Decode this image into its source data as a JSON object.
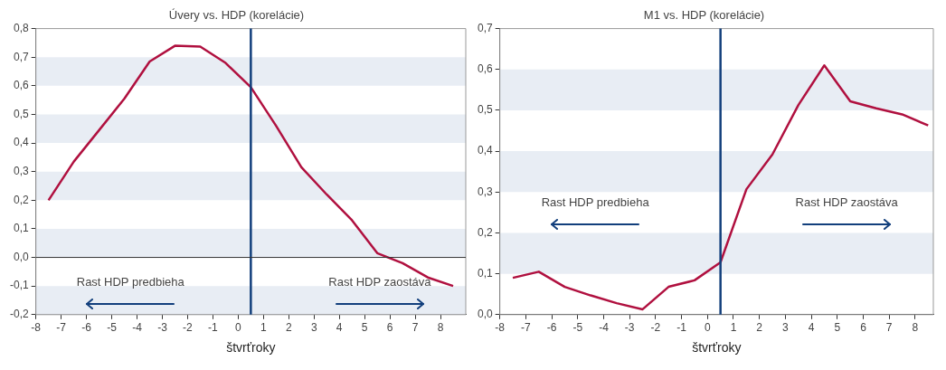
{
  "chart_data": [
    {
      "type": "line",
      "title": "Úvery vs. HDP (korelácie)",
      "xlabel": "štvrťroky",
      "x": [
        -7.5,
        -6.5,
        -5.5,
        -4.5,
        -3.5,
        -2.5,
        -1.5,
        -0.5,
        0.5,
        1.5,
        2.5,
        3.5,
        4.5,
        5.5,
        6.5,
        7.5,
        8.5
      ],
      "series": [
        {
          "color": "#b0103f",
          "values": [
            0.2,
            0.335,
            0.445,
            0.555,
            0.685,
            0.74,
            0.737,
            0.68,
            0.595,
            0.46,
            0.315,
            0.22,
            0.13,
            0.015,
            -0.02,
            -0.07,
            -0.1
          ]
        }
      ],
      "xlim": [
        -8,
        9
      ],
      "xticks": [
        -8,
        -7,
        -6,
        -5,
        -4,
        -3,
        -2,
        -1,
        0,
        1,
        2,
        3,
        4,
        5,
        6,
        7,
        8
      ],
      "ylim": [
        -0.2,
        0.8
      ],
      "yticks": [
        {
          "value": -0.2,
          "label": "-0,2"
        },
        {
          "value": -0.1,
          "label": "-0,1"
        },
        {
          "value": 0,
          "label": "0,0"
        },
        {
          "value": 0.1,
          "label": "0,1"
        },
        {
          "value": 0.2,
          "label": "0,2"
        },
        {
          "value": 0.3,
          "label": "0,3"
        },
        {
          "value": 0.4,
          "label": "0,4"
        },
        {
          "value": 0.5,
          "label": "0,5"
        },
        {
          "value": 0.6,
          "label": "0,6"
        },
        {
          "value": 0.7,
          "label": "0,7"
        },
        {
          "value": 0.8,
          "label": "0,8"
        }
      ],
      "ref_lines": [
        {
          "axis": "x",
          "value": 0.5,
          "color": "#123f7c"
        },
        {
          "axis": "y",
          "value": 0,
          "color": "#333333"
        }
      ],
      "bands": [
        {
          "axis": "y",
          "from": 0.6,
          "to": 0.7,
          "color": "#e8edf4"
        },
        {
          "axis": "y",
          "from": 0.4,
          "to": 0.5,
          "color": "#e8edf4"
        },
        {
          "axis": "y",
          "from": 0.2,
          "to": 0.3,
          "color": "#e8edf4"
        },
        {
          "axis": "y",
          "from": 0,
          "to": 0.1,
          "color": "#e8edf4"
        },
        {
          "axis": "y",
          "from": -0.2,
          "to": -0.1,
          "color": "#e8edf4"
        }
      ],
      "annotations": [
        "Rast HDP predbieha",
        "Rast HDP zaostáva"
      ],
      "grid": false,
      "legend": false,
      "marker": "none",
      "line_style": "solid"
    },
    {
      "type": "line",
      "title": "M1 vs. HDP (korelácie)",
      "xlabel": "štvrťroky",
      "x": [
        -7.5,
        -6.5,
        -5.5,
        -4.5,
        -3.5,
        -2.5,
        -1.5,
        -0.5,
        0.5,
        1.5,
        2.5,
        3.5,
        4.5,
        5.5,
        6.5,
        7.5,
        8.5
      ],
      "series": [
        {
          "color": "#b0103f",
          "values": [
            0.09,
            0.105,
            0.068,
            0.047,
            0.028,
            0.013,
            0.068,
            0.084,
            0.128,
            0.307,
            0.392,
            0.513,
            0.61,
            0.522,
            0.505,
            0.49,
            0.463
          ]
        }
      ],
      "xlim": [
        -8,
        8.7
      ],
      "xticks": [
        -8,
        -7,
        -6,
        -5,
        -4,
        -3,
        -2,
        -1,
        0,
        1,
        2,
        3,
        4,
        5,
        6,
        7,
        8
      ],
      "ylim": [
        0,
        0.7
      ],
      "yticks": [
        {
          "value": 0,
          "label": "0,0"
        },
        {
          "value": 0.1,
          "label": "0,1"
        },
        {
          "value": 0.2,
          "label": "0,2"
        },
        {
          "value": 0.3,
          "label": "0,3"
        },
        {
          "value": 0.4,
          "label": "0,4"
        },
        {
          "value": 0.5,
          "label": "0,5"
        },
        {
          "value": 0.6,
          "label": "0,6"
        },
        {
          "value": 0.7,
          "label": "0,7"
        }
      ],
      "ref_lines": [
        {
          "axis": "x",
          "value": 0.5,
          "color": "#123f7c"
        }
      ],
      "bands": [
        {
          "axis": "y",
          "from": 0.5,
          "to": 0.6,
          "color": "#e8edf4"
        },
        {
          "axis": "y",
          "from": 0.3,
          "to": 0.4,
          "color": "#e8edf4"
        },
        {
          "axis": "y",
          "from": 0.1,
          "to": 0.2,
          "color": "#e8edf4"
        }
      ],
      "annotations": [
        "Rast HDP predbieha",
        "Rast HDP zaostáva"
      ],
      "grid": false,
      "legend": false,
      "marker": "none",
      "line_style": "solid"
    }
  ]
}
